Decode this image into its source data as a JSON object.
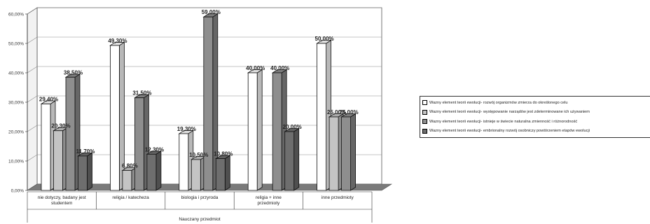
{
  "chart_data": {
    "type": "bar",
    "xlabel": "Nauczany przedmiot",
    "ylabel": "",
    "ylim": [
      0,
      60
    ],
    "yticks": [
      "0,00%",
      "10,00%",
      "20,00%",
      "30,00%",
      "40,00%",
      "50,00%",
      "60,00%"
    ],
    "grid": true,
    "legend_position": "right",
    "categories": [
      "nie dotyczy, badany jest studentem",
      "religia / katecheza",
      "biologia i przyroda",
      "religia + inne przedmioty",
      "inne przedmioty"
    ],
    "series": [
      {
        "name": "Wazny element teorii ewolucji- rozwój organizmów zmierza do określonego celu",
        "color": "#ffffff",
        "values": [
          29.4,
          49.3,
          19.3,
          40.0,
          50.0
        ],
        "labels": [
          "29,40%",
          "49,30%",
          "19,30%",
          "40,00%",
          "50,00%"
        ]
      },
      {
        "name": "Wazny element teorii ewolucji- występowanie narządów jest zdeterminowane ich używaniem",
        "color": "#c4c4c4",
        "values": [
          20.3,
          6.8,
          10.5,
          0,
          25.0
        ],
        "labels": [
          "20,30%",
          "6,80%",
          "10,50%",
          "",
          "25,00%"
        ]
      },
      {
        "name": "Wazny element teorii ewolucji- istnieje w świecie naturalna zmienność i różnorodność",
        "color": "#8e8e8e",
        "values": [
          38.5,
          31.5,
          59.0,
          40.0,
          25.0
        ],
        "labels": [
          "38,50%",
          "31,50%",
          "59,00%",
          "40,00%",
          "25,00%"
        ]
      },
      {
        "name": "Wazny element teorii ewolucji- embrionalny rozwój osobniczy powtórzeniem etapów ewolucji",
        "color": "#6e6e6e",
        "values": [
          11.7,
          12.3,
          10.8,
          20.0,
          0
        ],
        "labels": [
          "11,70%",
          "12,30%",
          "10,80%",
          "20,00%",
          ""
        ]
      }
    ]
  }
}
